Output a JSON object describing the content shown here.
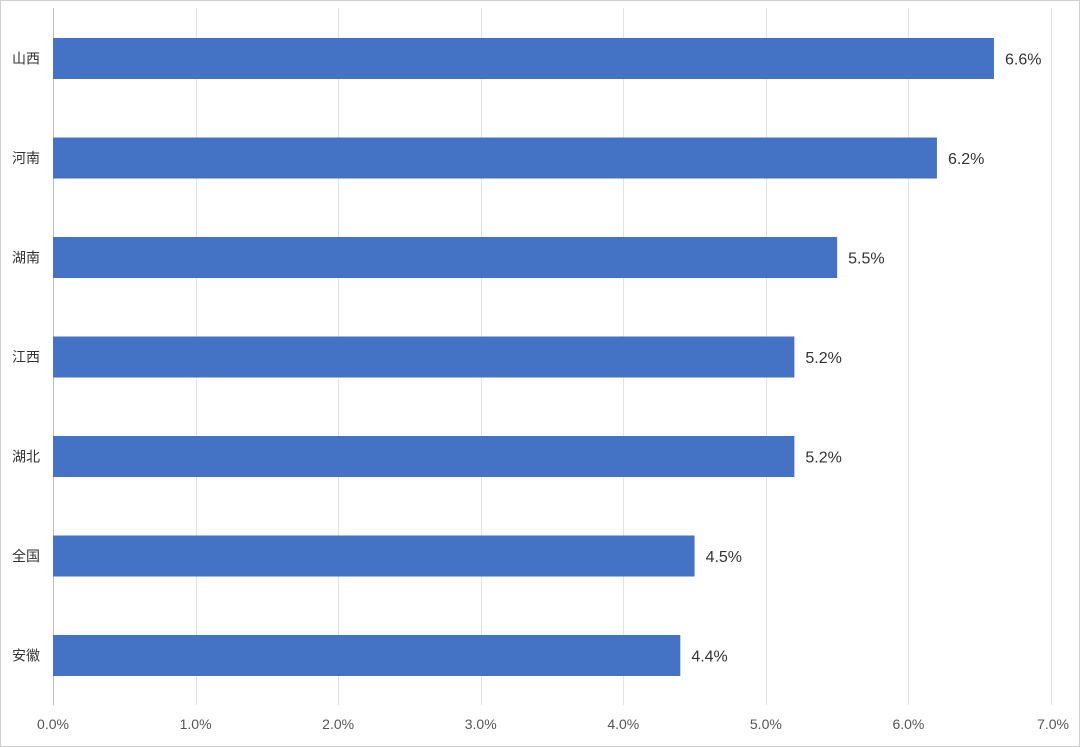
{
  "chart_data": {
    "type": "bar",
    "orientation": "horizontal",
    "title": "",
    "xlabel": "",
    "ylabel": "",
    "categories": [
      "山西",
      "河南",
      "湖南",
      "江西",
      "湖北",
      "全国",
      "安徽"
    ],
    "values": [
      6.6,
      6.2,
      5.5,
      5.2,
      5.2,
      4.5,
      4.4
    ],
    "value_labels": [
      "6.6%",
      "6.2%",
      "5.5%",
      "5.2%",
      "5.2%",
      "4.5%",
      "4.4%"
    ],
    "xlim": [
      0,
      7
    ],
    "x_ticks": [
      0,
      1,
      2,
      3,
      4,
      5,
      6,
      7
    ],
    "x_tick_labels": [
      "0.0%",
      "1.0%",
      "2.0%",
      "3.0%",
      "4.0%",
      "5.0%",
      "6.0%",
      "7.0%"
    ],
    "grid": true,
    "legend": "none",
    "colors": {
      "bar": "#4472c4",
      "grid": "#e2e2e2",
      "frame": "#cfcfcf",
      "text": "#333333"
    }
  }
}
